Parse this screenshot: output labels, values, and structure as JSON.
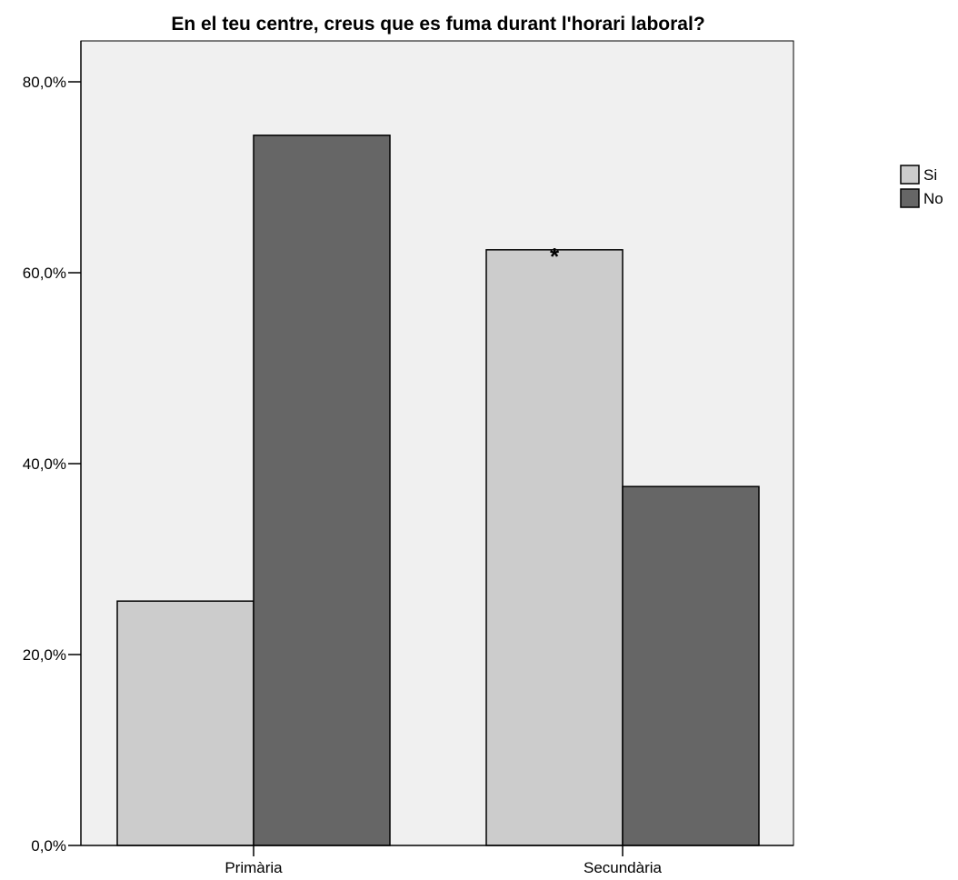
{
  "chart_data": {
    "type": "bar",
    "title": "En el teu centre, creus que es fuma durant l'horari laboral?",
    "xlabel": "",
    "ylabel": "",
    "categories": [
      "Primària",
      "Secundària"
    ],
    "series": [
      {
        "name": "Si",
        "values": [
          25.6,
          62.4
        ],
        "color": "#cccccc"
      },
      {
        "name": "No",
        "values": [
          74.4,
          37.6
        ],
        "color": "#666666"
      }
    ],
    "ylim": [
      0,
      85
    ],
    "yticks": [
      0,
      20,
      40,
      60,
      80
    ],
    "ytick_labels": [
      "0,0%",
      "20,0%",
      "40,0%",
      "60,0%",
      "80,0%"
    ],
    "annotations": [
      {
        "category": "Secundària",
        "series": "Si",
        "text": "*"
      }
    ],
    "grid": false,
    "legend_position": "right",
    "plot_background": "#f0f0f0"
  }
}
